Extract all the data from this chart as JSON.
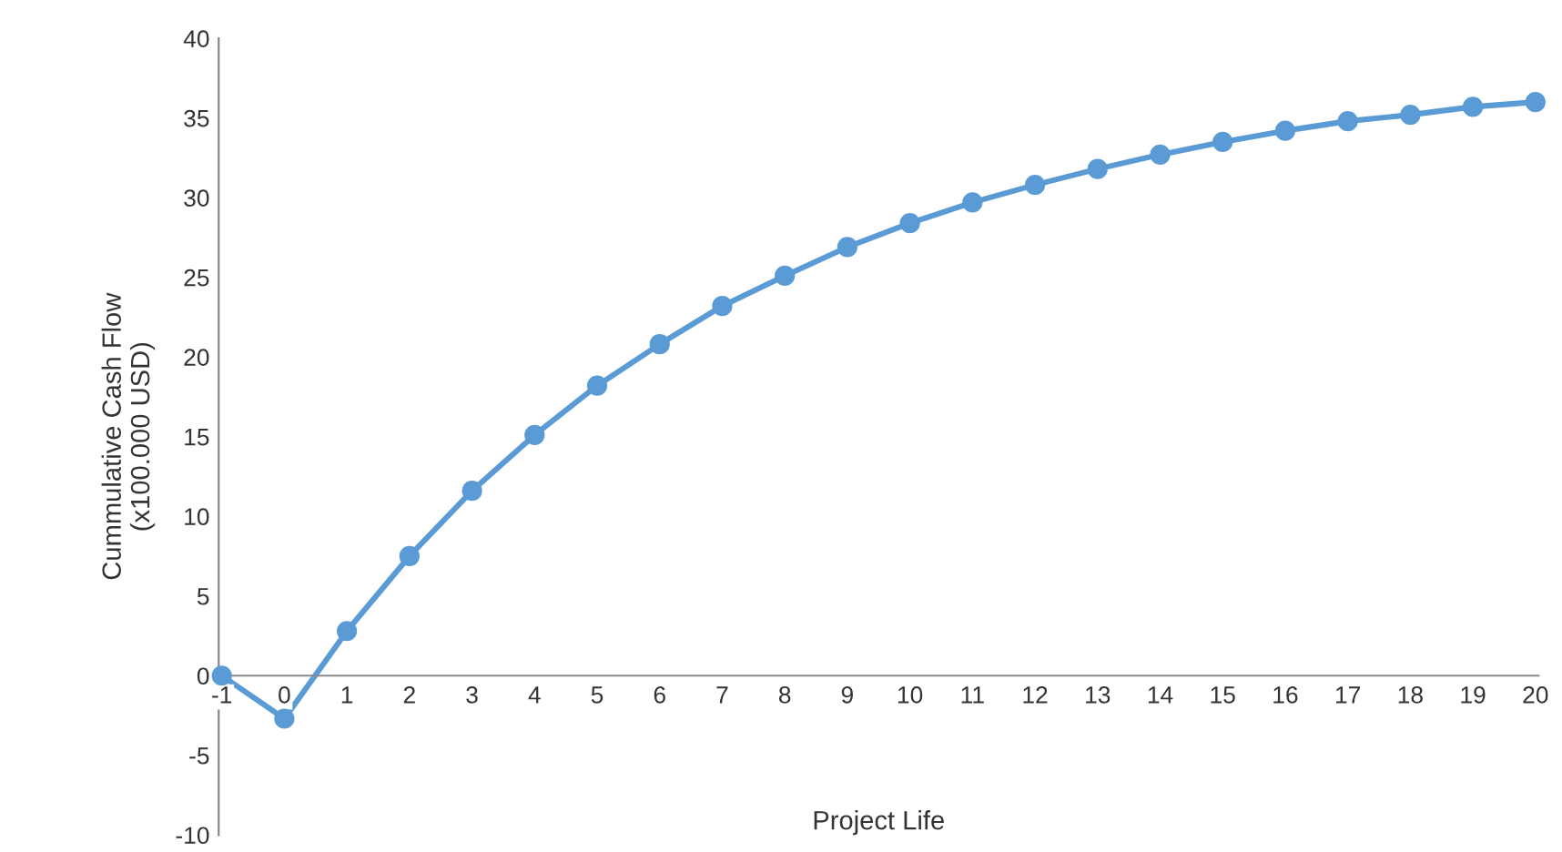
{
  "chart_data": {
    "type": "line",
    "xlabel": "Project Life",
    "ylabel": "Cummulative Cash Flow\n(x100.000 USD)",
    "categories": [
      "-1",
      "0",
      "1",
      "2",
      "3",
      "4",
      "5",
      "6",
      "7",
      "8",
      "9",
      "10",
      "11",
      "12",
      "13",
      "14",
      "15",
      "16",
      "17",
      "18",
      "19",
      "20"
    ],
    "series": [
      {
        "color": "#5b9bd5",
        "values": [
          0,
          -2.7,
          2.8,
          7.5,
          11.6,
          15.1,
          18.2,
          20.8,
          23.2,
          25.1,
          26.9,
          28.4,
          29.7,
          30.8,
          31.8,
          32.7,
          33.5,
          34.2,
          34.8,
          35.2,
          35.7,
          36.0
        ]
      }
    ],
    "ylim": [
      -10,
      40
    ],
    "yticks": [
      -10,
      -5,
      0,
      5,
      10,
      15,
      20,
      25,
      30,
      35,
      40
    ],
    "grid": false,
    "marker": "circle",
    "line_style": "solid"
  }
}
